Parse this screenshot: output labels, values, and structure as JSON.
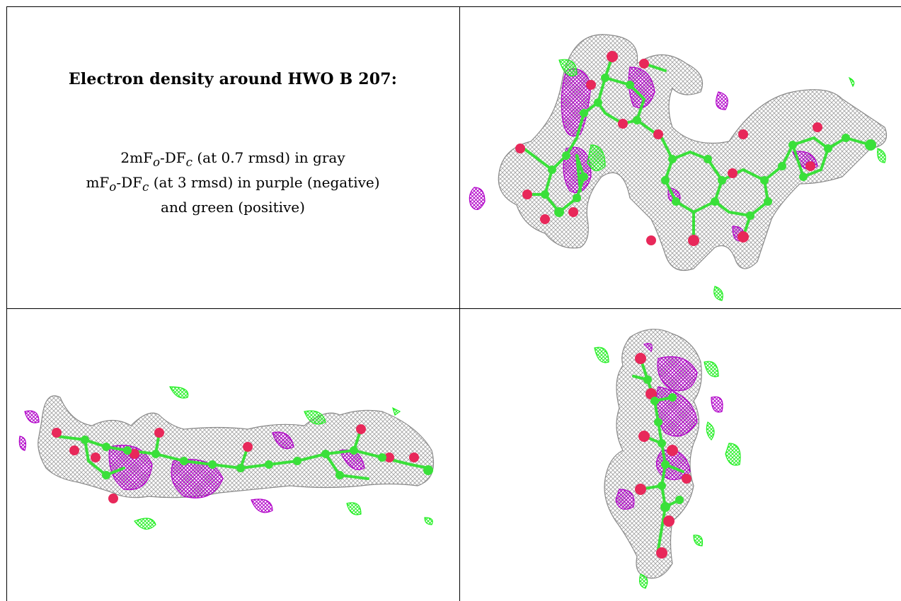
{
  "caption": {
    "title": "Electron density around HWO B 207:",
    "line1_pre": "2mF",
    "line1_sub1": "o",
    "line1_mid": "-DF",
    "line1_sub2": "c",
    "line1_post": " (at 0.7 rmsd) in gray",
    "line2_pre": "mF",
    "line2_sub1": "o",
    "line2_mid": "-DF",
    "line2_sub2": "c",
    "line2_post": " (at 3 rmsd) in purple (negative)",
    "line3": "and green (positive)"
  },
  "colors": {
    "mesh_gray": "#9a9a9a",
    "negative_purple": "#b000c8",
    "positive_green": "#22ee22",
    "atom_red": "#e8285a",
    "bond_green": "#3ae03a"
  },
  "panels": [
    {
      "name": "density-view-top"
    },
    {
      "name": "density-view-side"
    },
    {
      "name": "density-view-end"
    }
  ]
}
